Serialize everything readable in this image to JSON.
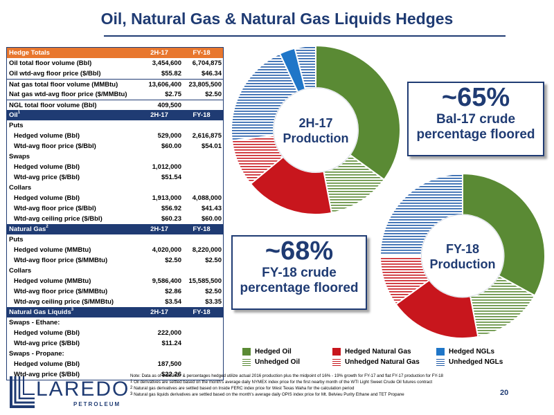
{
  "title": "Oil, Natural Gas & Natural Gas Liquids Hedges",
  "table": {
    "hedge_totals": {
      "header": {
        "label": "Hedge Totals",
        "c1": "2H-17",
        "c2": "FY-18"
      },
      "rows": [
        {
          "label": "Oil total floor volume (Bbl)",
          "v1": "3,454,600",
          "v2": "6,704,875"
        },
        {
          "label": "Oil wtd-avg floor price ($/Bbl)",
          "v1": "$55.82",
          "v2": "$46.34"
        },
        {
          "label": "Nat gas total floor volume (MMBtu)",
          "v1": "13,606,400",
          "v2": "23,805,500"
        },
        {
          "label": "Nat gas wtd-avg floor price ($/MMBtu)",
          "v1": "$2.75",
          "v2": "$2.50"
        },
        {
          "label": "NGL total floor volume (Bbl)",
          "v1": "409,500",
          "v2": ""
        }
      ]
    },
    "oil": {
      "header": {
        "label": "Oil",
        "sup": "1",
        "c1": "2H-17",
        "c2": "FY-18"
      },
      "rows": [
        {
          "label": "Puts",
          "v1": "",
          "v2": "",
          "type": "sect"
        },
        {
          "label": "Hedged volume (Bbl)",
          "v1": "529,000",
          "v2": "2,616,875",
          "type": "sub"
        },
        {
          "label": "Wtd-avg floor price ($/Bbl)",
          "v1": "$60.00",
          "v2": "$54.01",
          "type": "sub"
        },
        {
          "label": "Swaps",
          "v1": "",
          "v2": "",
          "type": "sect"
        },
        {
          "label": "Hedged volume (Bbl)",
          "v1": "1,012,000",
          "v2": "",
          "type": "sub"
        },
        {
          "label": "Wtd-avg price ($/Bbl)",
          "v1": "$51.54",
          "v2": "",
          "type": "sub"
        },
        {
          "label": "Collars",
          "v1": "",
          "v2": "",
          "type": "sect"
        },
        {
          "label": "Hedged volume (Bbl)",
          "v1": "1,913,000",
          "v2": "4,088,000",
          "type": "sub"
        },
        {
          "label": "Wtd-avg floor price ($/Bbl)",
          "v1": "$56.92",
          "v2": "$41.43",
          "type": "sub"
        },
        {
          "label": "Wtd-avg ceiling price ($/Bbl)",
          "v1": "$60.23",
          "v2": "$60.00",
          "type": "sub"
        }
      ]
    },
    "natural_gas": {
      "header": {
        "label": "Natural Gas",
        "sup": "2",
        "c1": "2H-17",
        "c2": "FY-18"
      },
      "rows": [
        {
          "label": "Puts",
          "v1": "",
          "v2": "",
          "type": "sect"
        },
        {
          "label": "Hedged volume (MMBtu)",
          "v1": "4,020,000",
          "v2": "8,220,000",
          "type": "sub"
        },
        {
          "label": "Wtd-avg floor price ($/MMBtu)",
          "v1": "$2.50",
          "v2": "$2.50",
          "type": "sub"
        },
        {
          "label": "Collars",
          "v1": "",
          "v2": "",
          "type": "sect"
        },
        {
          "label": "Hedged volume (MMBtu)",
          "v1": "9,586,400",
          "v2": "15,585,500",
          "type": "sub"
        },
        {
          "label": "Wtd-avg floor price ($/MMBtu)",
          "v1": "$2.86",
          "v2": "$2.50",
          "type": "sub"
        },
        {
          "label": "Wtd-avg ceiling price ($/MMBtu)",
          "v1": "$3.54",
          "v2": "$3.35",
          "type": "sub"
        }
      ]
    },
    "ngl": {
      "header": {
        "label": "Natural Gas Liquids",
        "sup": "3",
        "c1": "2H-17",
        "c2": "FY-18"
      },
      "rows": [
        {
          "label": "Swaps - Ethane:",
          "v1": "",
          "v2": "",
          "type": "sect"
        },
        {
          "label": "Hedged volume (Bbl)",
          "v1": "222,000",
          "v2": "",
          "type": "sub"
        },
        {
          "label": "Wtd-avg price ($/Bbl)",
          "v1": "$11.24",
          "v2": "",
          "type": "sub"
        },
        {
          "label": "Swaps - Propane:",
          "v1": "",
          "v2": "",
          "type": "sect"
        },
        {
          "label": "Hedged volume (Bbl)",
          "v1": "187,500",
          "v2": "",
          "type": "sub"
        },
        {
          "label": "Wtd-avg price ($/Bbl)",
          "v1": "$22.26",
          "v2": "",
          "type": "sub"
        }
      ]
    }
  },
  "chart_data": [
    {
      "type": "pie",
      "center_label": [
        "2H-17",
        "Production"
      ],
      "slices": [
        {
          "name": "Hedged Oil",
          "value": 35
        },
        {
          "name": "Unhedged Oil",
          "value": 12
        },
        {
          "name": "Hedged Natural Gas",
          "value": 17
        },
        {
          "name": "Unhedged Natural Gas",
          "value": 9
        },
        {
          "name": "Unhedged NGLs",
          "value": 20
        },
        {
          "name": "Hedged NGLs",
          "value": 3
        },
        {
          "name": "Unhedged NGLs",
          "value": 4
        }
      ]
    },
    {
      "type": "pie",
      "center_label": [
        "FY-18",
        "Production"
      ],
      "slices": [
        {
          "name": "Hedged Oil",
          "value": 33
        },
        {
          "name": "Unhedged Oil",
          "value": 14
        },
        {
          "name": "Hedged Natural Gas",
          "value": 18
        },
        {
          "name": "Unhedged Natural Gas",
          "value": 10
        },
        {
          "name": "Unhedged NGLs",
          "value": 25
        }
      ]
    }
  ],
  "callouts": {
    "first": {
      "big": "~65%",
      "line1": "Bal-17 crude",
      "line2": "percentage floored"
    },
    "second": {
      "big": "~68%",
      "line1": "FY-18 crude",
      "line2": "percentage floored"
    }
  },
  "legend": [
    {
      "label": "Hedged Oil",
      "color": "#5a8a34",
      "pattern": "solid"
    },
    {
      "label": "Hedged Natural Gas",
      "color": "#c8161d",
      "pattern": "solid"
    },
    {
      "label": "Hedged NGLs",
      "color": "#1f76c8",
      "pattern": "solid"
    },
    {
      "label": "Unhedged Oil",
      "color": "#5a8a34",
      "pattern": "stripe"
    },
    {
      "label": "Unhedged Natural Gas",
      "color": "#c8161d",
      "pattern": "stripe"
    },
    {
      "label": "Unhedged NGLs",
      "color": "#1f5aa8",
      "pattern": "stripe"
    }
  ],
  "notes": {
    "n0": "Note: Data as of 6/30/2017 & percentages hedged utilize actual 2016 production plus the midpoint of 16% - 19% growth for FY-17 and flat FY-17 production for FY-18",
    "n1": "Oil derivatives are settled based on the month's average daily NYMEX index price for the first nearby month of the WTI Light Sweet Crude Oil futures contract",
    "n2": "Natural gas derivatives are settled based on Inside FERC index price for West Texas Waha for the calculation period",
    "n3": "Natural gas liquids derivatives are settled based on the month's average daily OPIS index price for Mt. Belvieu Purity Ethane and TET Propane"
  },
  "page_number": "20",
  "logo": {
    "word": "LAREDO",
    "sub": "PETROLEUM"
  }
}
